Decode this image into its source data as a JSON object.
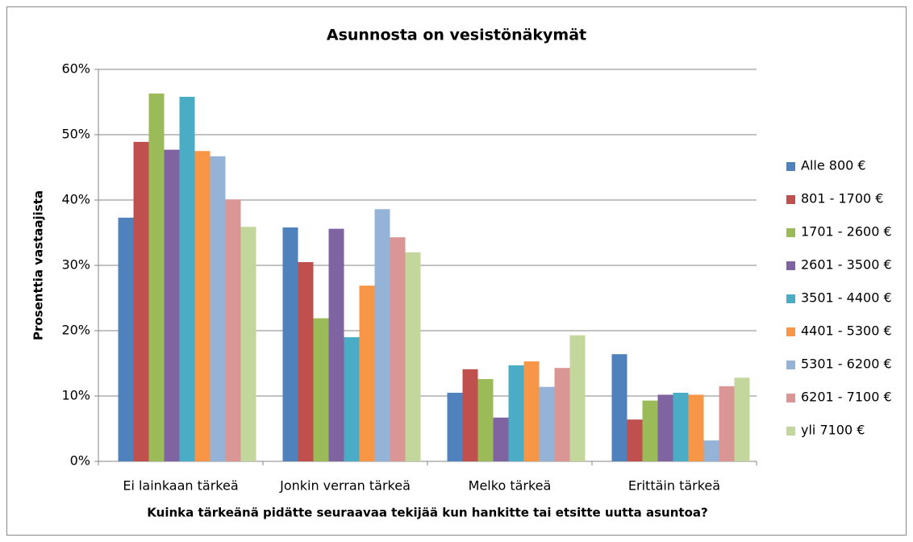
{
  "chart_data": {
    "type": "bar",
    "title": "Asunnosta on vesistönäkymät",
    "y_label": "Prosenttia vastaajista",
    "x_label": "Kuinka tärkeänä pidätte seuraavaa tekijää kun hankitte tai etsitte uutta asuntoa?",
    "categories": [
      "Ei lainkaan tärkeä",
      "Jonkin verran tärkeä",
      "Melko tärkeä",
      "Erittäin tärkeä"
    ],
    "series": [
      {
        "name": "Alle 800 €",
        "color": "#4F81BD",
        "values": [
          37.3,
          35.8,
          10.5,
          16.4
        ]
      },
      {
        "name": "801 - 1700 €",
        "color": "#C0504D",
        "values": [
          48.9,
          30.5,
          14.1,
          6.4
        ]
      },
      {
        "name": "1701 - 2600 €",
        "color": "#9BBB59",
        "values": [
          56.3,
          21.9,
          12.6,
          9.3
        ]
      },
      {
        "name": "2601 - 3500 €",
        "color": "#8064A2",
        "values": [
          47.7,
          35.6,
          6.7,
          10.2
        ]
      },
      {
        "name": "3501 - 4400 €",
        "color": "#4BACC6",
        "values": [
          55.8,
          19.0,
          14.7,
          10.5
        ]
      },
      {
        "name": "4401 - 5300 €",
        "color": "#F79646",
        "values": [
          47.5,
          26.9,
          15.3,
          10.2
        ]
      },
      {
        "name": "5301 - 6200 €",
        "color": "#95B3D7",
        "values": [
          46.7,
          38.6,
          11.4,
          3.2
        ]
      },
      {
        "name": "6201 - 7100 €",
        "color": "#D99694",
        "values": [
          40.1,
          34.3,
          14.3,
          11.5
        ]
      },
      {
        "name": "yli 7100 €",
        "color": "#C3D69B",
        "values": [
          35.9,
          32.0,
          19.3,
          12.8
        ]
      }
    ],
    "ylim": [
      0,
      60
    ],
    "yticks": [
      {
        "value": 0,
        "label": "0%"
      },
      {
        "value": 10,
        "label": "10%"
      },
      {
        "value": 20,
        "label": "20%"
      },
      {
        "value": 30,
        "label": "30%"
      },
      {
        "value": 40,
        "label": "40%"
      },
      {
        "value": 50,
        "label": "50%"
      },
      {
        "value": 60,
        "label": "60%"
      }
    ],
    "grid": true,
    "legend": "right"
  }
}
